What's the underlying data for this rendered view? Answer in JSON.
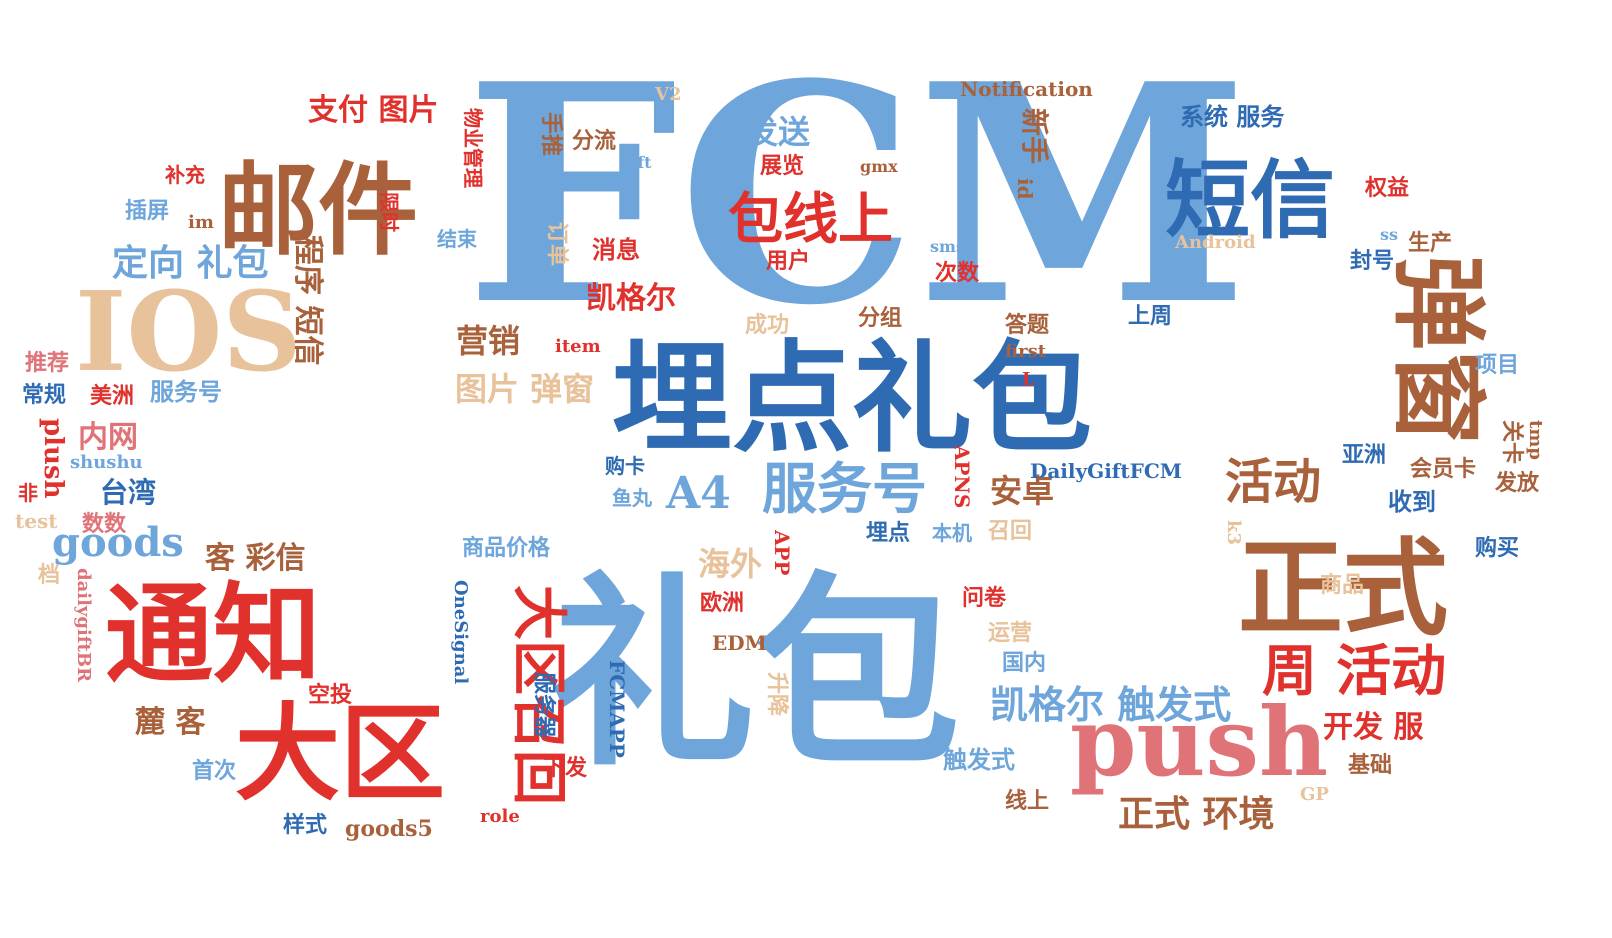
{
  "colors": {
    "dark_blue": "#2f6bb3",
    "light_blue": "#6ea6db",
    "brown": "#a8613b",
    "tan": "#e7c29a",
    "red": "#e0312d",
    "pink": "#e07377"
  },
  "words": [
    {
      "text": "FCM",
      "color": "light_blue"
    },
    {
      "text": "礼包",
      "color": "light_blue"
    },
    {
      "text": "埋点礼包",
      "color": "dark_blue"
    },
    {
      "text": "邮件",
      "color": "brown"
    },
    {
      "text": "IOS",
      "color": "tan"
    },
    {
      "text": "通知",
      "color": "red"
    },
    {
      "text": "大区",
      "color": "red"
    },
    {
      "text": "正式",
      "color": "brown"
    },
    {
      "text": "push",
      "color": "pink"
    },
    {
      "text": "短信",
      "color": "dark_blue"
    },
    {
      "text": "弹窗",
      "color": "brown"
    },
    {
      "text": "包线上",
      "color": "red"
    },
    {
      "text": "服务号",
      "color": "light_blue"
    },
    {
      "text": "周 活动",
      "color": "red"
    },
    {
      "text": "大区召回",
      "color": "red"
    },
    {
      "text": "goods",
      "color": "light_blue"
    },
    {
      "text": "活动",
      "color": "brown"
    },
    {
      "text": "A4",
      "color": "light_blue"
    },
    {
      "text": "凯格尔 触发式",
      "color": "light_blue"
    },
    {
      "text": "正式 环境",
      "color": "brown"
    },
    {
      "text": "定向 礼包",
      "color": "light_blue"
    },
    {
      "text": "支付 图片",
      "color": "red"
    },
    {
      "text": "发送",
      "color": "light_blue"
    },
    {
      "text": "营销",
      "color": "brown"
    },
    {
      "text": "图片 弹窗",
      "color": "tan"
    },
    {
      "text": "凯格尔",
      "color": "red"
    },
    {
      "text": "程序 短信",
      "color": "brown"
    },
    {
      "text": "客 彩信",
      "color": "brown"
    },
    {
      "text": "麓 客",
      "color": "brown"
    },
    {
      "text": "海外",
      "color": "tan"
    },
    {
      "text": "安卓",
      "color": "brown"
    },
    {
      "text": "开发 服",
      "color": "red"
    },
    {
      "text": "空投",
      "color": "red"
    },
    {
      "text": "内网",
      "color": "pink"
    },
    {
      "text": "台湾",
      "color": "dark_blue"
    },
    {
      "text": "服务号",
      "color": "light_blue"
    },
    {
      "text": "美洲",
      "color": "red"
    },
    {
      "text": "推荐",
      "color": "pink"
    },
    {
      "text": "常规",
      "color": "dark_blue"
    },
    {
      "text": "plush",
      "color": "red"
    },
    {
      "text": "shushu",
      "color": "light_blue"
    },
    {
      "text": "非",
      "color": "red"
    },
    {
      "text": "test",
      "color": "tan"
    },
    {
      "text": "数数",
      "color": "pink"
    },
    {
      "text": "档",
      "color": "tan"
    },
    {
      "text": "dailygiftBR",
      "color": "pink"
    },
    {
      "text": "补充",
      "color": "red"
    },
    {
      "text": "插屏",
      "color": "light_blue"
    },
    {
      "text": "im",
      "color": "brown"
    },
    {
      "text": "手推",
      "color": "brown"
    },
    {
      "text": "分流",
      "color": "brown"
    },
    {
      "text": "物业管理",
      "color": "red"
    },
    {
      "text": "V2",
      "color": "tan"
    },
    {
      "text": "gift",
      "color": "light_blue"
    },
    {
      "text": "展览",
      "color": "red"
    },
    {
      "text": "gmx",
      "color": "brown"
    },
    {
      "text": "限时",
      "color": "red"
    },
    {
      "text": "结束",
      "color": "light_blue"
    },
    {
      "text": "订单",
      "color": "tan"
    },
    {
      "text": "消息",
      "color": "red"
    },
    {
      "text": "用户",
      "color": "red"
    },
    {
      "text": "sms",
      "color": "light_blue"
    },
    {
      "text": "次数",
      "color": "red"
    },
    {
      "text": "新手",
      "color": "brown"
    },
    {
      "text": "id",
      "color": "brown"
    },
    {
      "text": "Notification",
      "color": "brown"
    },
    {
      "text": "系统 服务",
      "color": "dark_blue"
    },
    {
      "text": "权益",
      "color": "red"
    },
    {
      "text": "Android",
      "color": "tan"
    },
    {
      "text": "ss",
      "color": "light_blue"
    },
    {
      "text": "生产",
      "color": "brown"
    },
    {
      "text": "封号",
      "color": "dark_blue"
    },
    {
      "text": "数",
      "color": "light_blue"
    },
    {
      "text": "成功",
      "color": "tan"
    },
    {
      "text": "item",
      "color": "red"
    },
    {
      "text": "分组",
      "color": "brown"
    },
    {
      "text": "答题",
      "color": "brown"
    },
    {
      "text": "first",
      "color": "brown"
    },
    {
      "text": "L",
      "color": "red"
    },
    {
      "text": "上周",
      "color": "dark_blue"
    },
    {
      "text": "项目",
      "color": "light_blue"
    },
    {
      "text": "亚洲",
      "color": "dark_blue"
    },
    {
      "text": "会员卡",
      "color": "brown"
    },
    {
      "text": "关卡",
      "color": "brown"
    },
    {
      "text": "tmp",
      "color": "brown"
    },
    {
      "text": "发放",
      "color": "brown"
    },
    {
      "text": "收到",
      "color": "dark_blue"
    },
    {
      "text": "购买",
      "color": "dark_blue"
    },
    {
      "text": "k3",
      "color": "tan"
    },
    {
      "text": "商品",
      "color": "tan"
    },
    {
      "text": "DailyGiftFCM",
      "color": "dark_blue"
    },
    {
      "text": "APNS",
      "color": "red"
    },
    {
      "text": "购卡",
      "color": "dark_blue"
    },
    {
      "text": "鱼丸",
      "color": "light_blue"
    },
    {
      "text": "埋点",
      "color": "dark_blue"
    },
    {
      "text": "本机",
      "color": "light_blue"
    },
    {
      "text": "召回",
      "color": "tan"
    },
    {
      "text": "商品价格",
      "color": "light_blue"
    },
    {
      "text": "APP",
      "color": "red"
    },
    {
      "text": "欧洲",
      "color": "red"
    },
    {
      "text": "问卷",
      "color": "red"
    },
    {
      "text": "EDM",
      "color": "brown"
    },
    {
      "text": "运营",
      "color": "tan"
    },
    {
      "text": "国内",
      "color": "light_blue"
    },
    {
      "text": "升降",
      "color": "tan"
    },
    {
      "text": "触发式",
      "color": "light_blue"
    },
    {
      "text": "线上",
      "color": "brown"
    },
    {
      "text": "基础",
      "color": "brown"
    },
    {
      "text": "GP",
      "color": "tan"
    },
    {
      "text": "OneSignal",
      "color": "dark_blue"
    },
    {
      "text": "FCMAPP",
      "color": "dark_blue"
    },
    {
      "text": "服务器",
      "color": "dark_blue"
    },
    {
      "text": "下发",
      "color": "red"
    },
    {
      "text": "role",
      "color": "red"
    },
    {
      "text": "goods5",
      "color": "brown"
    },
    {
      "text": "样式",
      "color": "dark_blue"
    },
    {
      "text": "首次",
      "color": "light_blue"
    }
  ]
}
